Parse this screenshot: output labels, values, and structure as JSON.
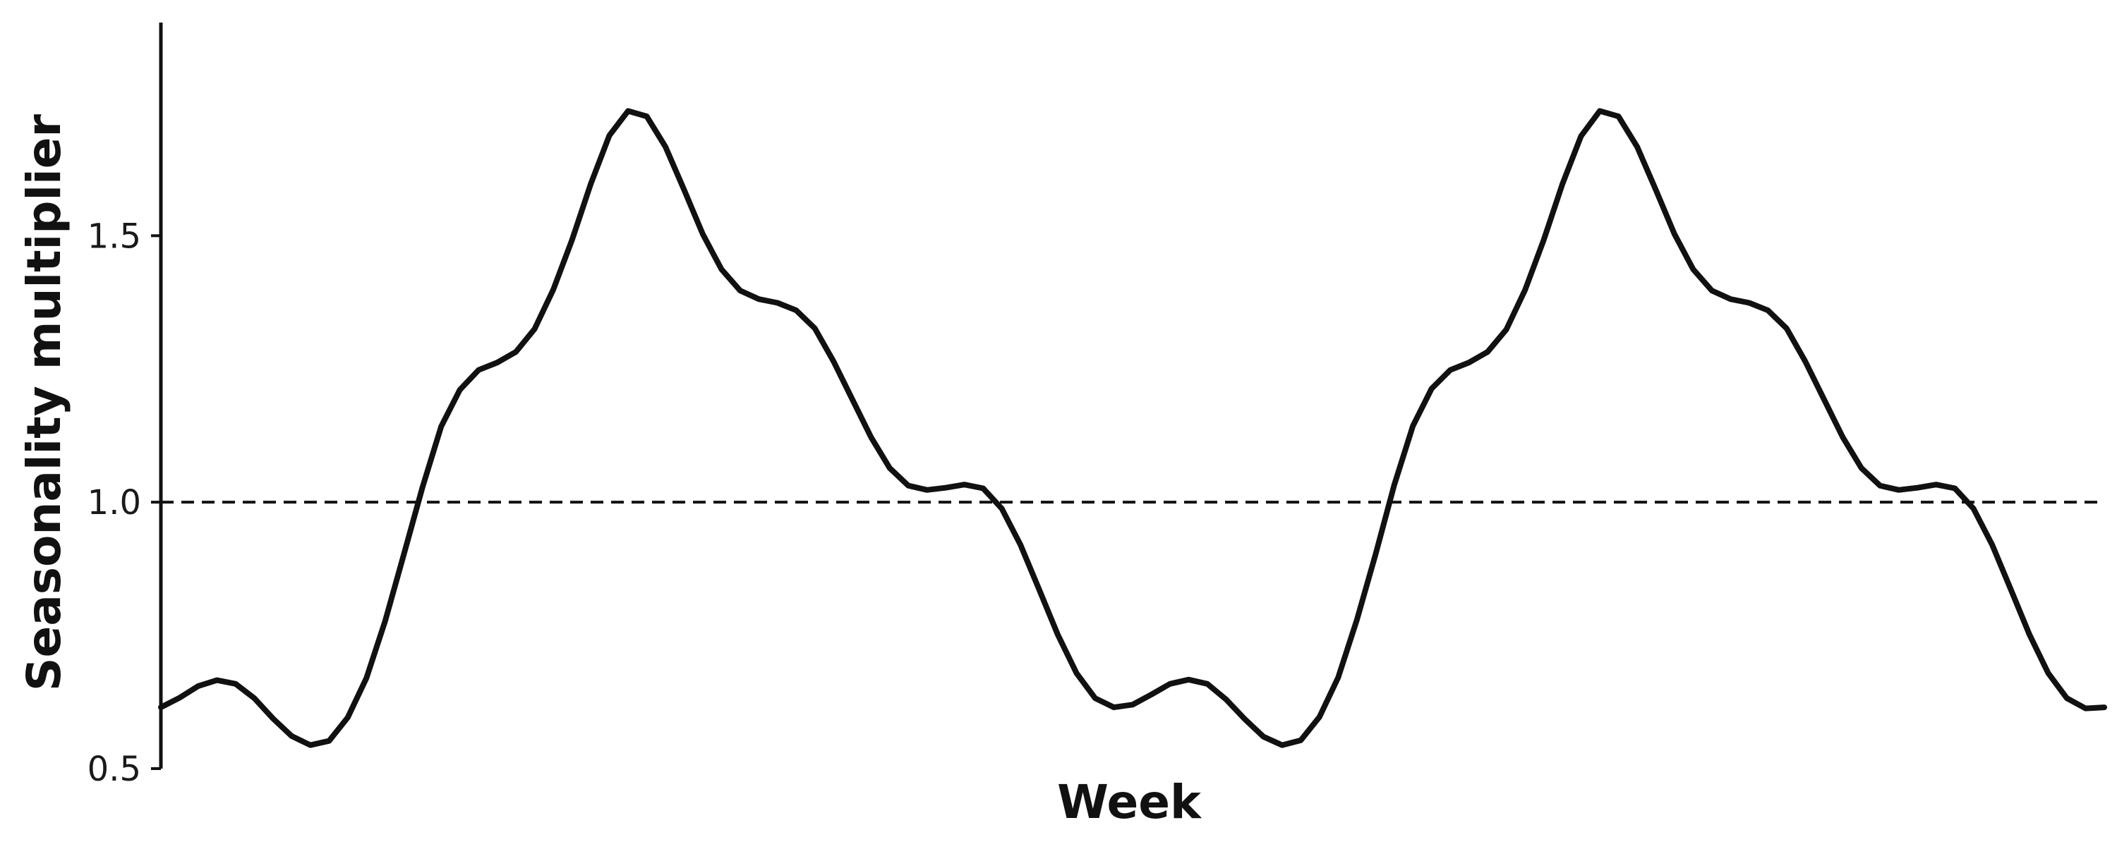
{
  "chart_data": {
    "type": "line",
    "title": "",
    "xlabel": "Week",
    "ylabel": "Seasonality multiplier",
    "xlim": [
      0,
      104
    ],
    "ylim": [
      0.5,
      1.9
    ],
    "yticks": [
      {
        "value": 0.5,
        "label": "0.5"
      },
      {
        "value": 1.0,
        "label": "1.0"
      },
      {
        "value": 1.5,
        "label": "1.5"
      }
    ],
    "x_tick_labels": [],
    "grid": false,
    "legend": "none",
    "reference_line": {
      "y": 1.0,
      "style": "dashed"
    },
    "series": [
      {
        "color": "#111111",
        "x": [
          0,
          1,
          2,
          3,
          4,
          5,
          6,
          7,
          8,
          9,
          10,
          11,
          12,
          13,
          14,
          15,
          16,
          17,
          18,
          19,
          20,
          21,
          22,
          23,
          24,
          25,
          26,
          27,
          28,
          29,
          30,
          31,
          32,
          33,
          34,
          35,
          36,
          37,
          38,
          39,
          40,
          41,
          42,
          43,
          44,
          45,
          46,
          47,
          48,
          49,
          50,
          51,
          52,
          53,
          54,
          55,
          56,
          57,
          58,
          59,
          60,
          61,
          62,
          63,
          64,
          65,
          66,
          67,
          68,
          69,
          70,
          71,
          72,
          73,
          74,
          75,
          76,
          77,
          78,
          79,
          80,
          81,
          82,
          83,
          84,
          85,
          86,
          87,
          88,
          89,
          90,
          91,
          92,
          93,
          94,
          95,
          96,
          97,
          98,
          99,
          100,
          101,
          102,
          103,
          104
        ],
        "values": [
          0.615,
          0.633,
          0.655,
          0.666,
          0.659,
          0.632,
          0.594,
          0.561,
          0.544,
          0.552,
          0.596,
          0.67,
          0.777,
          0.902,
          1.028,
          1.142,
          1.211,
          1.248,
          1.262,
          1.282,
          1.325,
          1.399,
          1.492,
          1.597,
          1.688,
          1.734,
          1.724,
          1.667,
          1.586,
          1.503,
          1.437,
          1.397,
          1.381,
          1.374,
          1.36,
          1.326,
          1.264,
          1.193,
          1.122,
          1.064,
          1.031,
          1.023,
          1.027,
          1.033,
          1.026,
          0.988,
          0.92,
          0.836,
          0.751,
          0.679,
          0.632,
          0.615,
          0.62,
          0.639,
          0.659,
          0.667,
          0.659,
          0.63,
          0.593,
          0.56,
          0.544,
          0.553,
          0.597,
          0.671,
          0.779,
          0.902,
          1.032,
          1.143,
          1.213,
          1.248,
          1.262,
          1.282,
          1.324,
          1.398,
          1.492,
          1.597,
          1.687,
          1.734,
          1.724,
          1.667,
          1.586,
          1.503,
          1.437,
          1.397,
          1.381,
          1.374,
          1.36,
          1.326,
          1.264,
          1.193,
          1.122,
          1.064,
          1.031,
          1.023,
          1.027,
          1.033,
          1.026,
          0.988,
          0.92,
          0.836,
          0.751,
          0.679,
          0.632,
          0.613,
          0.615
        ]
      }
    ]
  },
  "colors": {
    "line": "#111111",
    "axis": "#111111",
    "reference": "#111111",
    "background": "#ffffff"
  }
}
